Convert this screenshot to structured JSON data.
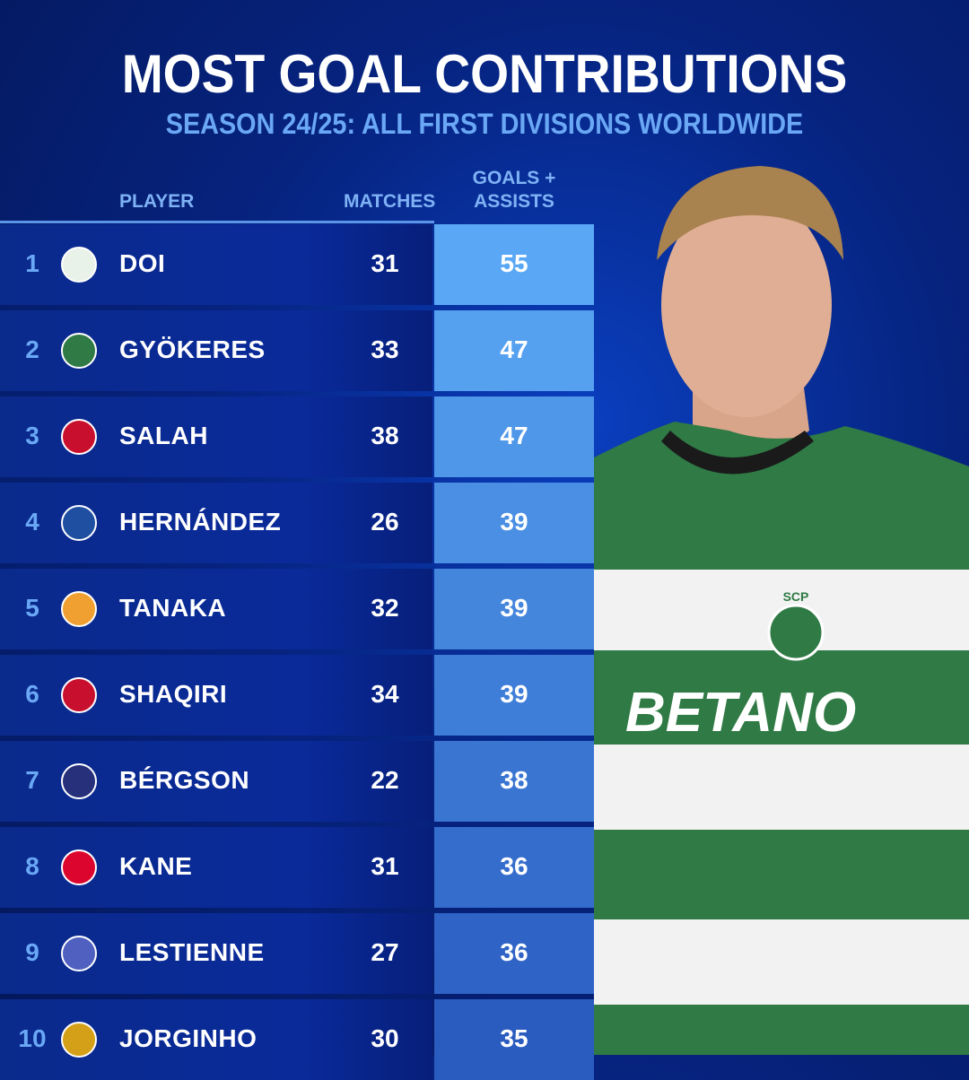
{
  "title": "MOST GOAL CONTRIBUTIONS",
  "subtitle": "SEASON 24/25: ALL FIRST DIVISIONS WORLDWIDE",
  "colors": {
    "background": "#06237f",
    "accent": "#6aa8f5",
    "top_value_cell": "#5aa8f5",
    "bottom_value_cell": "#2a5cc0"
  },
  "chart_data": {
    "type": "table",
    "columns": [
      "PLAYER",
      "MATCHES",
      "GOALS + ASSISTS"
    ],
    "rows": [
      {
        "rank": "1",
        "club_logo": "fc-sapporo-crest-icon",
        "player": "DOI",
        "matches": 31,
        "goals_assists": 55
      },
      {
        "rank": "2",
        "club_logo": "sporting-cp-crest-icon",
        "player": "GYÖKERES",
        "matches": 33,
        "goals_assists": 47
      },
      {
        "rank": "3",
        "club_logo": "liverpool-crest-icon",
        "player": "SALAH",
        "matches": 38,
        "goals_assists": 47
      },
      {
        "rank": "4",
        "club_logo": "club-crest-icon",
        "player": "HERNÁNDEZ",
        "matches": 26,
        "goals_assists": 39
      },
      {
        "rank": "5",
        "club_logo": "tiger-crest-icon",
        "player": "TANAKA",
        "matches": 32,
        "goals_assists": 39
      },
      {
        "rank": "6",
        "club_logo": "fc-basel-crest-icon",
        "player": "SHAQIRI",
        "matches": 34,
        "goals_assists": 39
      },
      {
        "rank": "7",
        "club_logo": "club-crest-icon",
        "player": "BÉRGSON",
        "matches": 22,
        "goals_assists": 38
      },
      {
        "rank": "8",
        "club_logo": "bayern-munich-crest-icon",
        "player": "KANE",
        "matches": 31,
        "goals_assists": 36
      },
      {
        "rank": "9",
        "club_logo": "club-crest-icon",
        "player": "LESTIENNE",
        "matches": 27,
        "goals_assists": 36
      },
      {
        "rank": "10",
        "club_logo": "kairat-crest-icon",
        "player": "JORGINHO",
        "matches": 30,
        "goals_assists": 35
      }
    ]
  },
  "headers": {
    "player": "PLAYER",
    "matches": "MATCHES",
    "ga_line1": "GOALS +",
    "ga_line2": "ASSISTS"
  },
  "photo": {
    "shirt_text": "BETANO",
    "badge_text": "SCP"
  }
}
